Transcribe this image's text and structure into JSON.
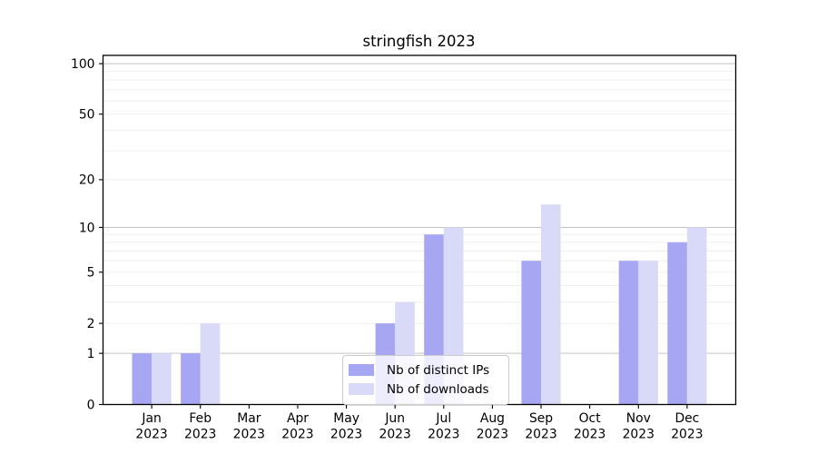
{
  "chart_data": {
    "type": "bar",
    "title": "stringfish 2023",
    "categories": [
      "Jan 2023",
      "Feb 2023",
      "Mar 2023",
      "Apr 2023",
      "May 2023",
      "Jun 2023",
      "Jul 2023",
      "Aug 2023",
      "Sep 2023",
      "Oct 2023",
      "Nov 2023",
      "Dec 2023"
    ],
    "series": [
      {
        "name": "Nb of distinct IPs",
        "color": "#a6a6f2",
        "values": [
          1,
          1,
          0,
          0,
          0,
          2,
          9,
          0,
          6,
          0,
          6,
          8
        ]
      },
      {
        "name": "Nb of downloads",
        "color": "#d9d9f8",
        "values": [
          1,
          2,
          0,
          0,
          0,
          3,
          10,
          0,
          14,
          0,
          6,
          10
        ]
      }
    ],
    "yscale": "log1p",
    "ylim": [
      0,
      112
    ],
    "yticks": [
      0,
      1,
      2,
      5,
      10,
      20,
      50,
      100
    ],
    "major_gridlines": [
      1,
      10,
      100
    ],
    "minor_gridlines": [
      2,
      3,
      4,
      5,
      6,
      7,
      8,
      9,
      20,
      30,
      40,
      50,
      60,
      70,
      80,
      90
    ],
    "grid": "horizontal",
    "legend_position": "lower center",
    "xlabel": "",
    "ylabel": ""
  }
}
